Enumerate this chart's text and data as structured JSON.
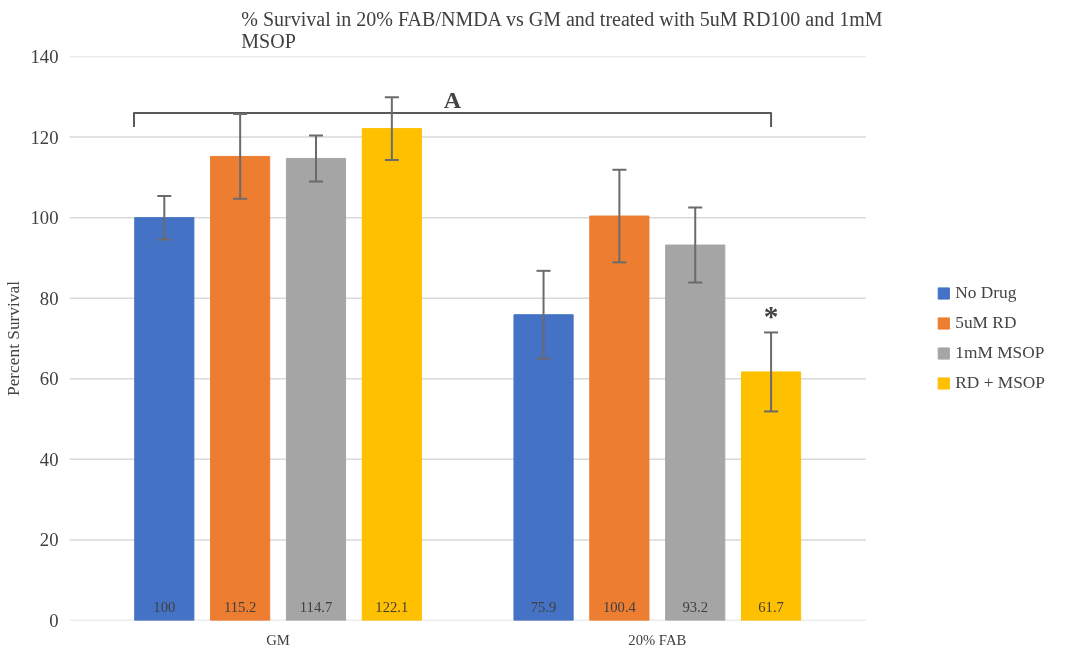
{
  "chart_data": {
    "type": "bar",
    "title": "% Survival in 20% FAB/NMDA vs GM and treated with 5uM RD100 and 1mM MSOP",
    "ylabel": "Percent Survival",
    "categories": [
      "GM",
      "20% FAB"
    ],
    "series": [
      {
        "name": "No Drug",
        "color": "#4472c4",
        "values": [
          100,
          75.9
        ],
        "errors": [
          5.4,
          10.9
        ]
      },
      {
        "name": "5uM RD",
        "color": "#ed7d31",
        "values": [
          115.2,
          100.4
        ],
        "errors": [
          10.5,
          11.5
        ]
      },
      {
        "name": "1mM MSOP",
        "color": "#a5a5a5",
        "values": [
          114.7,
          93.2
        ],
        "errors": [
          5.7,
          9.3
        ]
      },
      {
        "name": "RD + MSOP",
        "color": "#ffc000",
        "values": [
          122.1,
          61.7
        ],
        "errors": [
          7.8,
          9.8
        ]
      }
    ],
    "ylim": [
      0,
      140
    ],
    "yticks": [
      0,
      20,
      40,
      60,
      80,
      100,
      120,
      140
    ],
    "grid": "y",
    "legend": "right",
    "data_labels": true,
    "annotations": [
      "A",
      "*"
    ]
  }
}
